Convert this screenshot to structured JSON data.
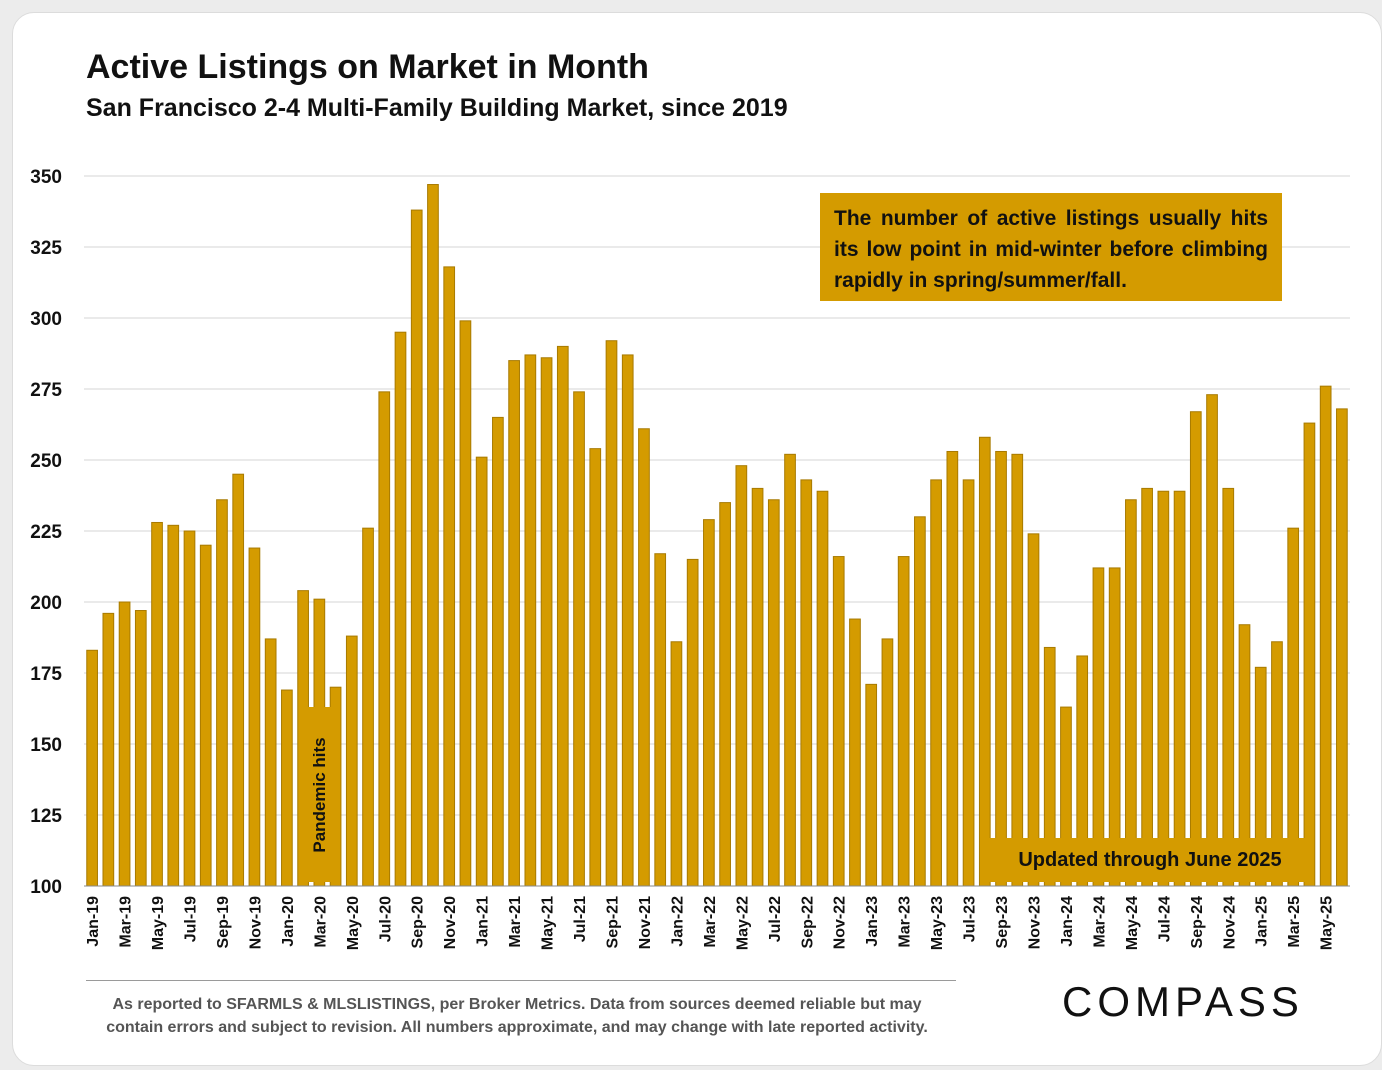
{
  "chart_data": {
    "type": "bar",
    "title": "Active Listings on Market in Month",
    "subtitle": "San Francisco 2-4 Multi-Family Building Market, since 2019",
    "ylim": [
      100,
      350
    ],
    "yticks": [
      100,
      125,
      150,
      175,
      200,
      225,
      250,
      275,
      300,
      325,
      350
    ],
    "grid": true,
    "months": [
      "Jan-19",
      "Feb-19",
      "Mar-19",
      "Apr-19",
      "May-19",
      "Jun-19",
      "Jul-19",
      "Aug-19",
      "Sep-19",
      "Oct-19",
      "Nov-19",
      "Dec-19",
      "Jan-20",
      "Feb-20",
      "Mar-20",
      "Apr-20",
      "May-20",
      "Jun-20",
      "Jul-20",
      "Aug-20",
      "Sep-20",
      "Oct-20",
      "Nov-20",
      "Dec-20",
      "Jan-21",
      "Feb-21",
      "Mar-21",
      "Apr-21",
      "May-21",
      "Jun-21",
      "Jul-21",
      "Aug-21",
      "Sep-21",
      "Oct-21",
      "Nov-21",
      "Dec-21",
      "Jan-22",
      "Feb-22",
      "Mar-22",
      "Apr-22",
      "May-22",
      "Jun-22",
      "Jul-22",
      "Aug-22",
      "Sep-22",
      "Oct-22",
      "Nov-22",
      "Dec-22",
      "Jan-23",
      "Feb-23",
      "Mar-23",
      "Apr-23",
      "May-23",
      "Jun-23",
      "Jul-23",
      "Aug-23",
      "Sep-23",
      "Oct-23",
      "Nov-23",
      "Dec-23",
      "Jan-24",
      "Feb-24",
      "Mar-24",
      "Apr-24",
      "May-24",
      "Jun-24",
      "Jul-24",
      "Aug-24",
      "Sep-24",
      "Oct-24",
      "Nov-24",
      "Dec-24",
      "Jan-25",
      "Feb-25",
      "Mar-25",
      "Apr-25",
      "May-25",
      "Jun-25"
    ],
    "values": [
      183,
      196,
      200,
      197,
      228,
      227,
      225,
      220,
      236,
      245,
      219,
      187,
      169,
      204,
      201,
      170,
      188,
      226,
      274,
      295,
      338,
      347,
      318,
      299,
      251,
      265,
      285,
      287,
      286,
      290,
      274,
      254,
      292,
      287,
      261,
      217,
      186,
      215,
      229,
      235,
      248,
      240,
      236,
      252,
      243,
      239,
      216,
      194,
      171,
      187,
      216,
      230,
      243,
      253,
      243,
      258,
      253,
      252,
      224,
      184,
      163,
      181,
      212,
      212,
      236,
      240,
      239,
      239,
      267,
      273,
      240,
      192,
      177,
      186,
      226,
      263,
      276,
      268
    ],
    "xtick_labels": [
      "Jan-19",
      "Mar-19",
      "May-19",
      "Jul-19",
      "Sep-19",
      "Nov-19",
      "Jan-20",
      "Mar-20",
      "May-20",
      "Jul-20",
      "Sep-20",
      "Nov-20",
      "Jan-21",
      "Mar-21",
      "May-21",
      "Jul-21",
      "Sep-21",
      "Nov-21",
      "Jan-22",
      "Mar-22",
      "May-22",
      "Jul-22",
      "Sep-22",
      "Nov-22",
      "Jan-23",
      "Mar-23",
      "May-23",
      "Jul-23",
      "Sep-23",
      "Nov-23",
      "Jan-24",
      "Mar-24",
      "May-24",
      "Jul-24",
      "Sep-24",
      "Nov-24",
      "Jan-25",
      "Mar-25",
      "May-25"
    ],
    "annotations": {
      "callout": "The number of active listings usually hits its low point in mid-winter before climbing rapidly in spring/summer/fall.",
      "pandemic": "Pandemic hits",
      "updated": "Updated through June 2025"
    },
    "colors": {
      "bar": "#d49b00",
      "bar_edge": "#a87a00",
      "grid": "#d4d4d4",
      "text": "#111111"
    }
  },
  "footnote": {
    "line1": "As reported to SFARMLS & MLSLISTINGS, per Broker Metrics. Data from sources deemed reliable but may",
    "line2": "contain errors and subject to revision. All numbers approximate, and may change with late reported activity."
  },
  "brand": {
    "logo_text": "COMPASS"
  }
}
